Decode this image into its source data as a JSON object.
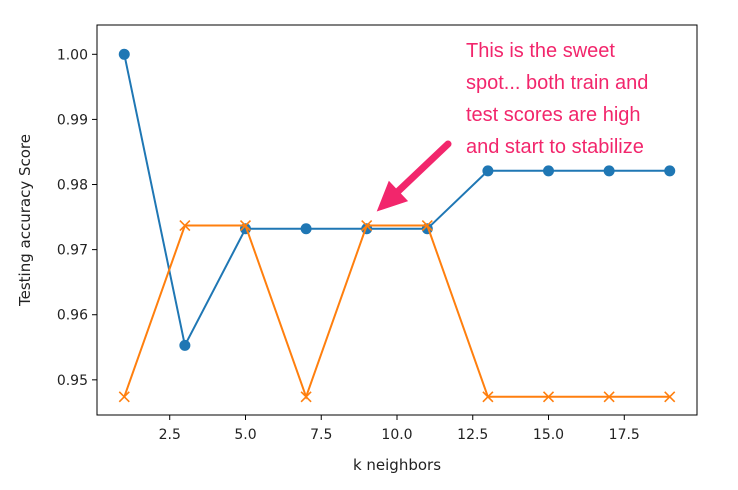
{
  "chart_data": {
    "type": "line",
    "title": "",
    "xlabel": "k neighbors",
    "ylabel": "Testing accuracy Score",
    "xlim": [
      0.1,
      19.9
    ],
    "ylim": [
      0.9446,
      1.0045
    ],
    "xticks": [
      2.5,
      5.0,
      7.5,
      10.0,
      12.5,
      15.0,
      17.5
    ],
    "yticks": [
      0.95,
      0.96,
      0.97,
      0.98,
      0.99,
      1.0
    ],
    "grid": false,
    "legend": "none",
    "series": [
      {
        "color": "#1f77b4",
        "marker": "circle",
        "x": [
          1,
          3,
          5,
          7,
          9,
          11,
          13,
          15,
          17,
          19
        ],
        "values": [
          1.0,
          0.9553,
          0.9732,
          0.9732,
          0.9732,
          0.9732,
          0.9821,
          0.9821,
          0.9821,
          0.9821
        ]
      },
      {
        "color": "#ff7f0e",
        "marker": "x",
        "x": [
          1,
          3,
          5,
          7,
          9,
          11,
          13,
          15,
          17,
          19
        ],
        "values": [
          0.9474,
          0.9737,
          0.9737,
          0.9474,
          0.9737,
          0.9737,
          0.9474,
          0.9474,
          0.9474,
          0.9474
        ]
      }
    ],
    "annotations": [
      {
        "lines": [
          "This is the sweet",
          "spot... both train and",
          "test scores are high",
          "and start to stabilize"
        ],
        "color": "#f2266c",
        "arrow_to": {
          "x": 9,
          "y": 0.9737
        }
      }
    ]
  }
}
